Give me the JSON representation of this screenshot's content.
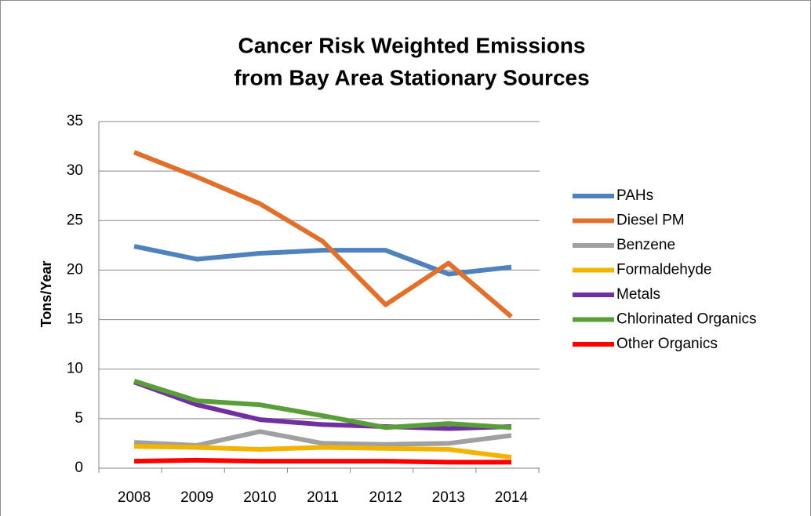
{
  "chart_data": {
    "type": "line",
    "title": [
      "Cancer Risk Weighted Emissions",
      "from Bay Area Stationary Sources"
    ],
    "y_label": "Tons/Year",
    "categories": [
      "2008",
      "2009",
      "2010",
      "2011",
      "2012",
      "2013",
      "2014"
    ],
    "series": [
      {
        "name": "PAHs",
        "color": "#4f81bd",
        "values": [
          22.4,
          21.1,
          21.7,
          22.0,
          22.0,
          19.6,
          20.3
        ]
      },
      {
        "name": "Diesel PM",
        "color": "#e0712c",
        "values": [
          31.9,
          29.4,
          26.7,
          22.9,
          16.5,
          20.7,
          15.3
        ]
      },
      {
        "name": "Benzene",
        "color": "#a0a0a0",
        "values": [
          2.6,
          2.3,
          3.7,
          2.5,
          2.4,
          2.5,
          3.3
        ]
      },
      {
        "name": "Formaldehyde",
        "color": "#f2b400",
        "values": [
          2.2,
          2.1,
          1.9,
          2.1,
          2.0,
          1.9,
          1.1
        ]
      },
      {
        "name": "Metals",
        "color": "#7030a0",
        "values": [
          8.7,
          6.4,
          4.9,
          4.4,
          4.2,
          4.0,
          4.2
        ]
      },
      {
        "name": "Chlorinated Organics",
        "color": "#5a9e3a",
        "values": [
          8.8,
          6.8,
          6.4,
          5.3,
          4.1,
          4.5,
          4.1
        ]
      },
      {
        "name": "Other Organics",
        "color": "#ff0000",
        "values": [
          0.7,
          0.8,
          0.7,
          0.7,
          0.7,
          0.6,
          0.6
        ]
      }
    ],
    "ylim": [
      0,
      35
    ],
    "yticks": [
      0,
      5,
      10,
      15,
      20,
      25,
      30,
      35
    ],
    "grid": true,
    "legend": "right"
  }
}
